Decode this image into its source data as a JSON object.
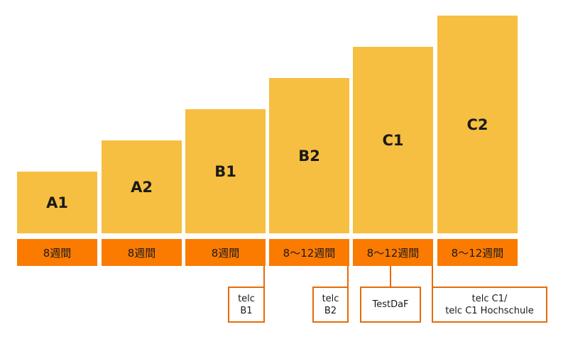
{
  "levels": [
    {
      "label": "A1",
      "duration": "8週間"
    },
    {
      "label": "A2",
      "duration": "8週間"
    },
    {
      "label": "B1",
      "duration": "8週間"
    },
    {
      "label": "B2",
      "duration": "8〜12週間"
    },
    {
      "label": "C1",
      "duration": "8〜12週間"
    },
    {
      "label": "C2",
      "duration": "8〜12週間"
    }
  ],
  "certificates": [
    {
      "line1": "telc",
      "line2": "B1"
    },
    {
      "line1": "telc",
      "line2": "B2"
    },
    {
      "line1": "TestDaF",
      "line2": ""
    },
    {
      "line1": "telc C1/",
      "line2": "telc C1 Hochschule"
    }
  ],
  "colors": {
    "step": "#F6BF41",
    "duration": "#FB7A00",
    "line": "#E46C0A"
  }
}
